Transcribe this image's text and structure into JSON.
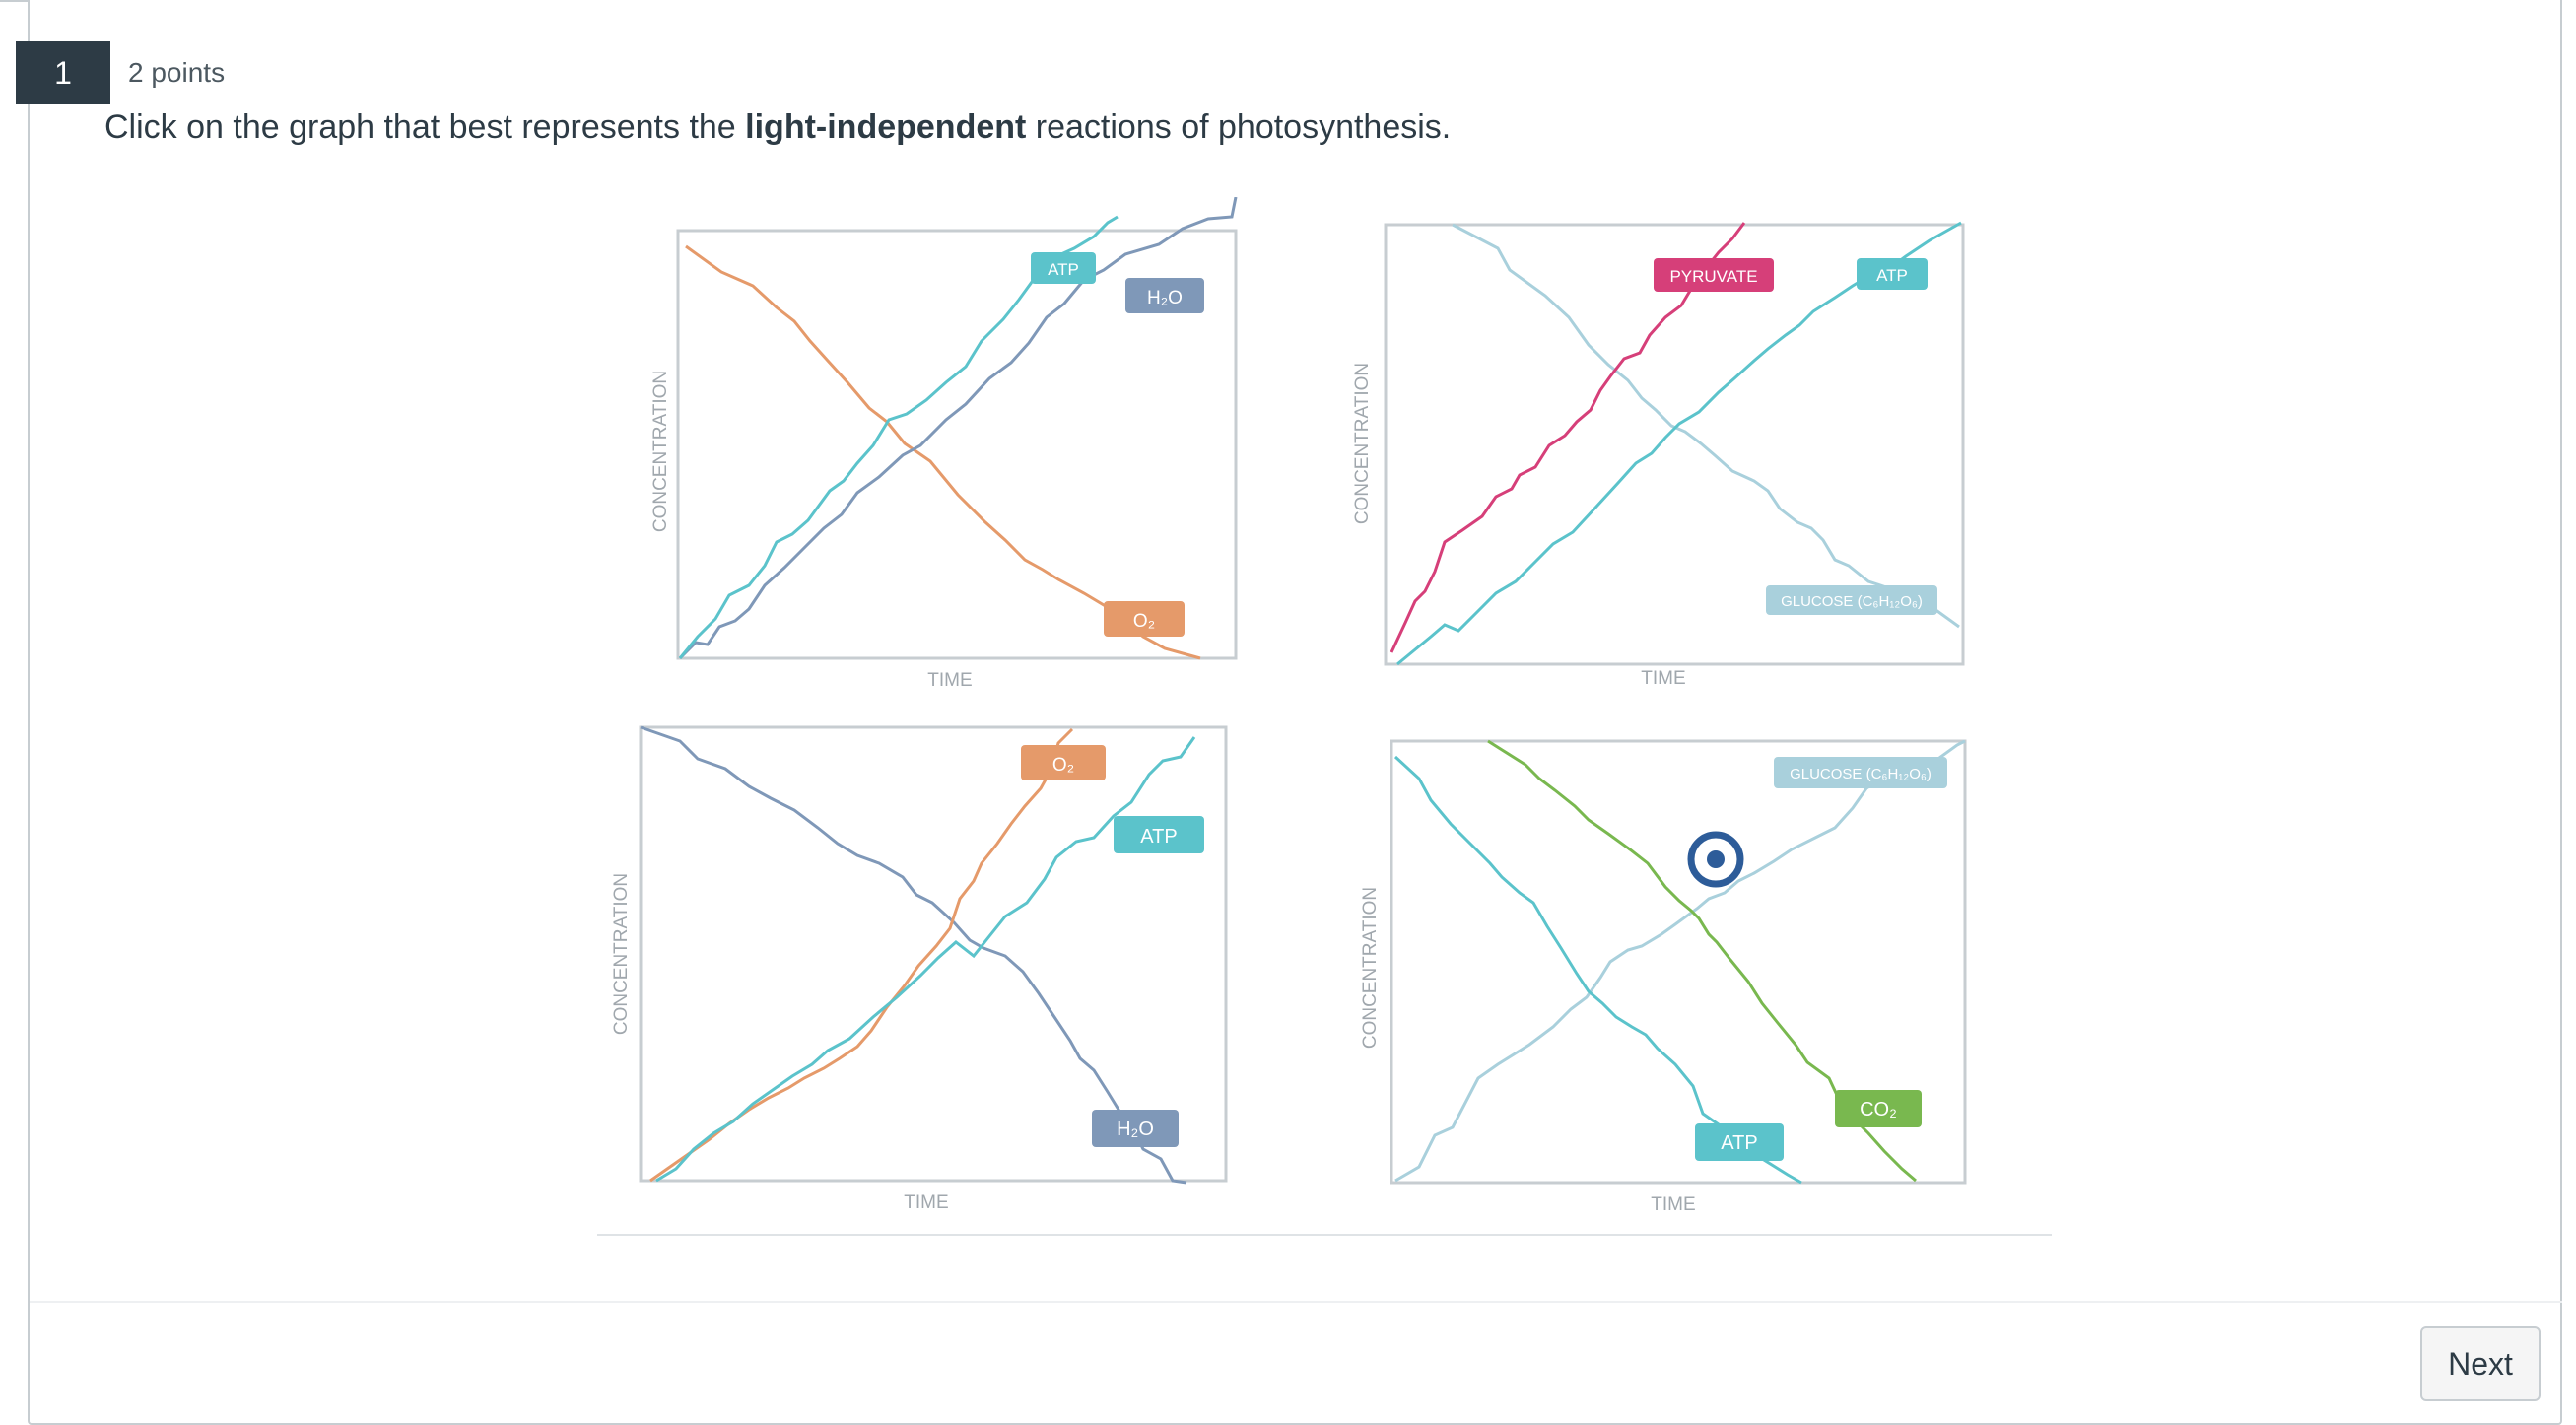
{
  "question": {
    "number": "1",
    "points": "2 points",
    "prompt_before": "Click on the graph that best represents the ",
    "prompt_bold": "light-independent",
    "prompt_after": " reactions of photosynthesis."
  },
  "graphs": [
    {
      "ylabel": "CONCENTRATION",
      "xlabel": "TIME",
      "labels": [
        "ATP",
        "H₂O",
        "O₂"
      ]
    },
    {
      "ylabel": "CONCENTRATION",
      "xlabel": "TIME",
      "labels": [
        "PYRUVATE",
        "ATP",
        "GLUCOSE (C₆H₁₂O₆)"
      ]
    },
    {
      "ylabel": "CONCENTRATION",
      "xlabel": "TIME",
      "labels": [
        "O₂",
        "ATP",
        "H₂O"
      ]
    },
    {
      "ylabel": "CONCENTRATION",
      "xlabel": "TIME",
      "labels": [
        "GLUCOSE (C₆H₁₂O₆)",
        "CO₂",
        "ATP"
      ]
    }
  ],
  "colors": {
    "teal": "#5bc3cb",
    "slate": "#7f98b8",
    "orange": "#e59a6a",
    "pink": "#d63f79",
    "lightblue": "#a9d0dc",
    "green": "#79b84f",
    "marker": "#2d5c99"
  },
  "footer": {
    "next_label": "Next"
  }
}
